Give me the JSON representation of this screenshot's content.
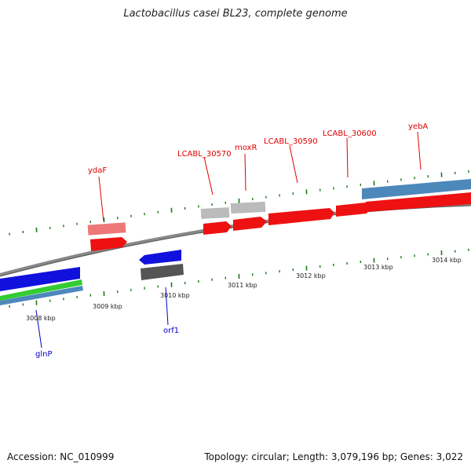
{
  "title": "Lactobacillus casei BL23, complete genome",
  "footer": {
    "accession": "Accession: NC_010999",
    "topology": "Topology: circular; Length: 3,079,196 bp; Genes: 3,022"
  },
  "colors": {
    "forward_gene": "#ee1111",
    "reverse_gene": "#1111dd",
    "pseudo_light": "#bbbbbb",
    "dark_gene": "#555555",
    "rna_blue": "#4d88bb",
    "green": "#33cc33",
    "tick": "#1a7a1a",
    "label_forward": "#e00000",
    "label_reverse": "#0000cc"
  },
  "scale_labels": [
    "3008 kbp",
    "3009 kbp",
    "3010 kbp",
    "3011 kbp",
    "3012 kbp",
    "3013 kbp",
    "3014 kbp"
  ],
  "gene_labels": {
    "ydaF": "ydaF",
    "LCABL_30570": "LCABL_30570",
    "moxR": "moxR",
    "LCABL_30590": "LCABL_30590",
    "LCABL_30600": "LCABL_30600",
    "yebA": "yebA",
    "orf1": "orf1",
    "glnP": "glnP"
  }
}
